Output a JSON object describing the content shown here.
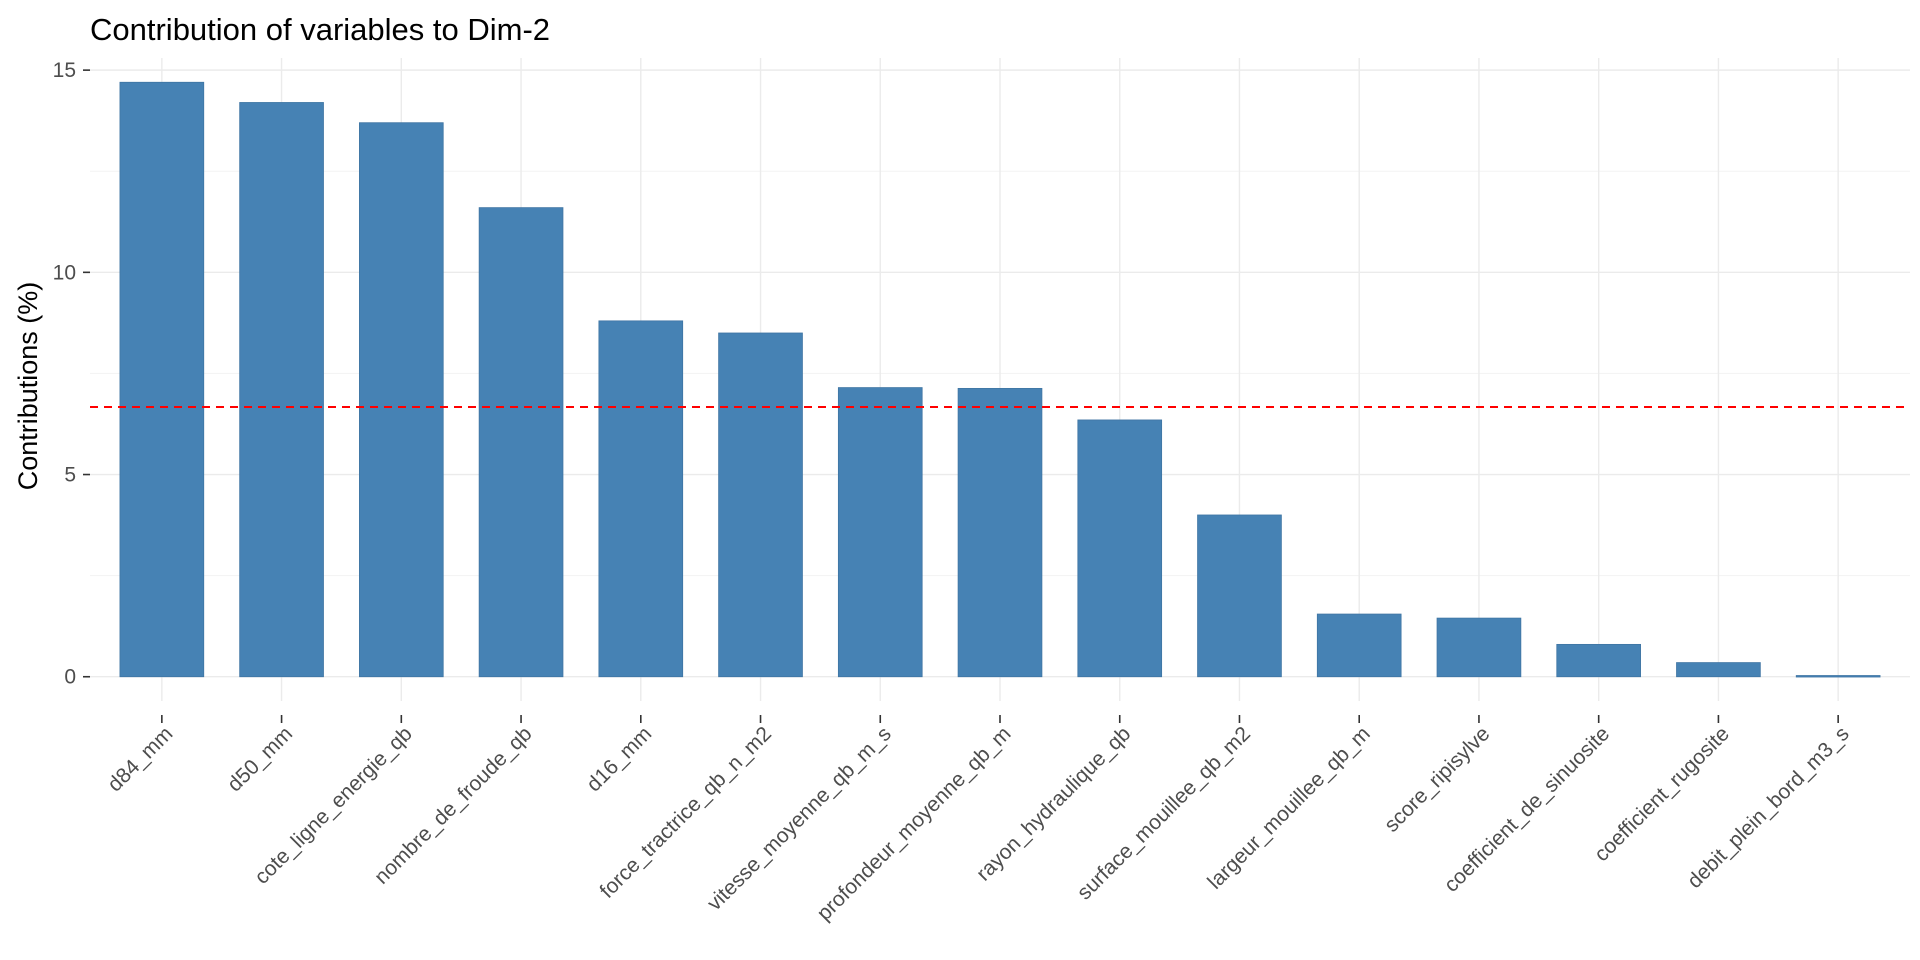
{
  "chart_data": {
    "type": "bar",
    "title": "Contribution of variables to Dim-2",
    "xlabel": "",
    "ylabel": "Contributions (%)",
    "categories": [
      "d84_mm",
      "d50_mm",
      "cote_ligne_energie_qb",
      "nombre_de_froude_qb",
      "d16_mm",
      "force_tractrice_qb_n_m2",
      "vitesse_moyenne_qb_m_s",
      "profondeur_moyenne_qb_m",
      "rayon_hydraulique_qb",
      "surface_mouillee_qb_m2",
      "largeur_mouillee_qb_m",
      "score_ripisylve",
      "coefficient_de_sinuosite",
      "coefficient_rugosite",
      "debit_plein_bord_m3_s"
    ],
    "values": [
      14.7,
      14.2,
      13.7,
      11.6,
      8.8,
      8.5,
      7.15,
      7.13,
      6.35,
      4.0,
      1.55,
      1.45,
      0.8,
      0.35,
      0.03
    ],
    "yticks": [
      0,
      5,
      10,
      15
    ],
    "ylim": [
      -0.6,
      15.3
    ],
    "reference_line": {
      "value": 6.67,
      "style": "dashed",
      "color": "#ff0000"
    },
    "bar_color": "#4682b4",
    "grid": true,
    "legend": "none"
  }
}
